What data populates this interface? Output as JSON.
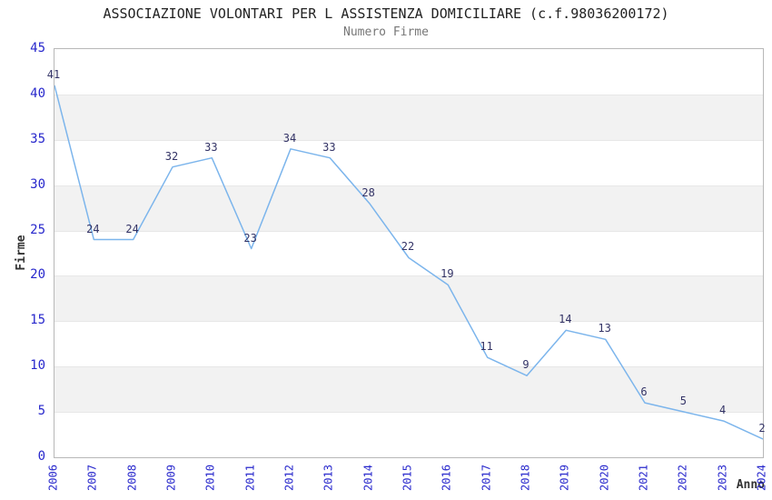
{
  "header": {
    "title": "ASSOCIAZIONE VOLONTARI PER L ASSISTENZA DOMICILIARE (c.f.98036200172)",
    "subtitle": "Numero Firme"
  },
  "chart_data": {
    "type": "line",
    "title": "ASSOCIAZIONE VOLONTARI PER L ASSISTENZA DOMICILIARE (c.f.98036200172)",
    "subtitle": "Numero Firme",
    "x": [
      2006,
      2007,
      2008,
      2009,
      2010,
      2011,
      2012,
      2013,
      2014,
      2015,
      2016,
      2017,
      2018,
      2019,
      2020,
      2021,
      2022,
      2023,
      2024
    ],
    "series": [
      {
        "name": "Numero Firme",
        "values": [
          41,
          24,
          24,
          32,
          33,
          23,
          34,
          33,
          28,
          22,
          19,
          11,
          9,
          14,
          13,
          6,
          5,
          4,
          2
        ]
      }
    ],
    "xlabel": "Anno",
    "ylabel": "Firme",
    "ylim": [
      0,
      45
    ],
    "ytick_step": 5,
    "yticks": [
      0,
      5,
      10,
      15,
      20,
      25,
      30,
      35,
      40,
      45
    ],
    "grid": "alternating-horizontal-bands",
    "legend": "none",
    "data_labels": true,
    "colors": {
      "line": "#7cb5ec",
      "tick_label": "#2727cc",
      "data_label": "#333366",
      "band_gray": "#f2f2f2",
      "band_white": "#ffffff",
      "gridline": "#e7e7e7",
      "plot_border": "#b8b8b8",
      "title": "#222222",
      "subtitle": "#777777",
      "axis_title": "#333333"
    }
  }
}
